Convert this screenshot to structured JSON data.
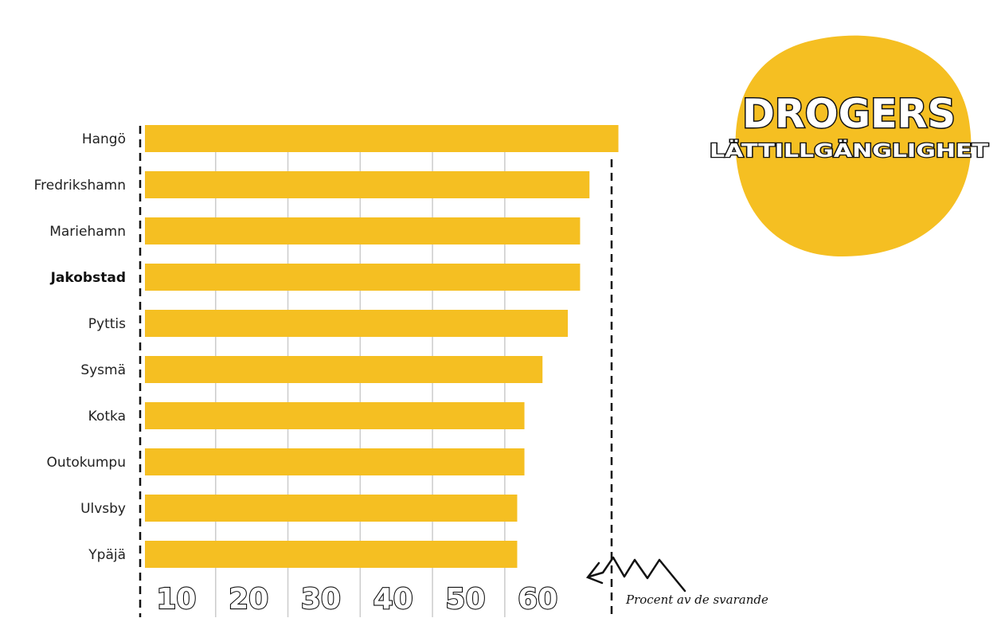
{
  "chart_data": {
    "type": "bar",
    "orientation": "horizontal",
    "title": "DROGERS",
    "subtitle": "LÄTTILLGÄNGLIGHET",
    "annotation": "Procent av de svarande",
    "categories": [
      "Hangö",
      "Fredrikshamn",
      "Mariehamn",
      "Jakobstad",
      "Pyttis",
      "Sysmä",
      "Kotka",
      "Outokumpu",
      "Ulvsby",
      "Ypäjä"
    ],
    "highlight_category": "Jakobstad",
    "values": [
      70.5,
      66.5,
      65.2,
      65.2,
      63.5,
      60,
      57.5,
      57.5,
      56.5,
      56.5
    ],
    "x_ticks": [
      "10",
      "20",
      "30",
      "40",
      "50",
      "60"
    ],
    "xlim": [
      5,
      70
    ],
    "grid": true,
    "colors": {
      "bar": "#F5BF22",
      "blob": "#F5BF22",
      "grid": "#cccccc",
      "text": "#111111"
    }
  }
}
